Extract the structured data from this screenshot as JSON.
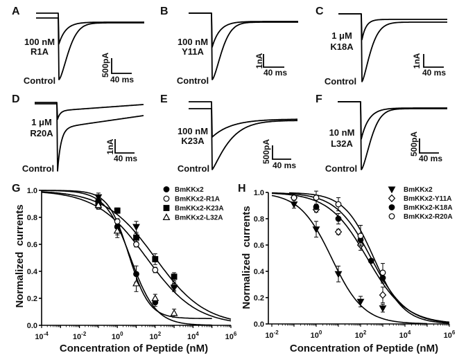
{
  "figure": {
    "background": "#ffffff",
    "ink": "#000000"
  },
  "trace_panels": [
    {
      "letter": "A",
      "concentration": "100 nM",
      "peptide": "R1A",
      "control_label": "Control",
      "scale_current": "500pA",
      "scale_time": "40 ms",
      "peak_fraction_vs_control": 0.5
    },
    {
      "letter": "B",
      "concentration": "100 nM",
      "peptide": "Y11A",
      "control_label": "Control",
      "scale_current": "1nA",
      "scale_time": "40 ms",
      "peak_fraction_vs_control": 0.51
    },
    {
      "letter": "C",
      "concentration": "1 μM",
      "peptide": "K18A",
      "control_label": "Control",
      "scale_current": "1nA",
      "scale_time": "40 ms",
      "peak_fraction_vs_control": 0.38
    },
    {
      "letter": "D",
      "concentration": "1 μM",
      "peptide": "R20A",
      "control_label": "Control",
      "scale_current": "1nA",
      "scale_time": "40 ms",
      "peak_fraction_vs_control": 0.25
    },
    {
      "letter": "E",
      "concentration": "100 nM",
      "peptide": "K23A",
      "control_label": "Control",
      "scale_current": "500pA",
      "scale_time": "40 ms",
      "peak_fraction_vs_control": 0.58
    },
    {
      "letter": "F",
      "concentration": "10 nM",
      "peptide": "L32A",
      "control_label": "Control",
      "scale_current": "500pA",
      "scale_time": "40 ms",
      "peak_fraction_vs_control": 0.55
    }
  ],
  "chart_data": [
    {
      "panel_letter": "G",
      "type": "scatter",
      "title": "",
      "xlabel": "Concentration of Peptide (nM)",
      "ylabel": "Normalized  currents",
      "xscale": "log",
      "xlim": [
        0.0001,
        1000000
      ],
      "ylim": [
        0,
        1
      ],
      "grid": false,
      "legend_position": "top-right",
      "xtick_labels": [
        {
          "value": 0.0001,
          "base": "10",
          "exp": "-4"
        },
        {
          "value": 0.01,
          "base": "10",
          "exp": "-2"
        },
        {
          "value": 1,
          "base": "10",
          "exp": "0"
        },
        {
          "value": 100,
          "base": "10",
          "exp": "2"
        },
        {
          "value": 10000,
          "base": "10",
          "exp": "4"
        },
        {
          "value": 1000000,
          "base": "10",
          "exp": "6"
        }
      ],
      "ytick_labels": [
        "0.0",
        "0.2",
        "0.4",
        "0.6",
        "0.8",
        "1.0"
      ],
      "series": [
        {
          "name": "BmKKx2",
          "marker": "circle-filled",
          "in_legend": true,
          "x": [
            0.1,
            1,
            10,
            100
          ],
          "y": [
            0.92,
            0.73,
            0.38,
            0.17
          ],
          "err": [
            0.03,
            0.06,
            0.06,
            0.03
          ],
          "fit": {
            "model": "hill",
            "top": 1,
            "bottom": 0,
            "ic50_nM": 5,
            "hill_n": 0.65,
            "x_range": [
              0.0001,
              100000
            ]
          }
        },
        {
          "name": "BmKKx2-R1A",
          "marker": "circle-open",
          "in_legend": true,
          "x": [
            0.1,
            1,
            10,
            100,
            1000
          ],
          "y": [
            0.88,
            0.77,
            0.6,
            0.41,
            0.29
          ],
          "err": [
            0.02,
            0.02,
            0.02,
            0.02,
            0.03
          ],
          "fit": {
            "model": "hill",
            "top": 1,
            "bottom": 0,
            "ic50_nM": 35,
            "hill_n": 0.33,
            "x_range": [
              0.0001,
              1000000
            ]
          }
        },
        {
          "name": "BmKKx2-K23A",
          "marker": "square-filled",
          "in_legend": true,
          "x": [
            0.1,
            1,
            10,
            100,
            1000
          ],
          "y": [
            0.91,
            0.85,
            0.65,
            0.49,
            0.36
          ],
          "err": [
            0.02,
            0.02,
            0.03,
            0.04,
            0.03
          ],
          "fit": {
            "model": "hill",
            "top": 1,
            "bottom": 0,
            "ic50_nM": 100,
            "hill_n": 0.33,
            "x_range": [
              0.0001,
              1000000
            ]
          }
        },
        {
          "name": "BmKKx2-L32A",
          "marker": "triangle-up-open",
          "in_legend": true,
          "x": [
            0.1,
            1,
            10,
            100,
            1000
          ],
          "y": [
            0.89,
            0.7,
            0.31,
            0.2,
            0.09
          ],
          "err": [
            0.02,
            0.05,
            0.06,
            0.03,
            0.03
          ],
          "fit": {
            "model": "hill",
            "top": 1,
            "bottom": 0.05,
            "ic50_nM": 4,
            "hill_n": 0.8,
            "x_range": [
              0.0001,
              100000
            ]
          }
        },
        {
          "name": null,
          "marker": "triangle-down-filled",
          "in_legend": false,
          "x": [
            0.1,
            10,
            1000
          ],
          "y": [
            0.95,
            0.73,
            0.28
          ],
          "err": [
            0.03,
            0.04,
            0.03
          ],
          "fit": null
        }
      ]
    },
    {
      "panel_letter": "H",
      "type": "scatter",
      "title": "",
      "xlabel": "Concentration of Peptide (nM)",
      "ylabel": "Normalized  currents",
      "xscale": "log",
      "xlim": [
        0.01,
        1000000
      ],
      "ylim": [
        0,
        1
      ],
      "grid": false,
      "legend_position": "top-right",
      "xtick_labels": [
        {
          "value": 0.01,
          "base": "10",
          "exp": "-2"
        },
        {
          "value": 1,
          "base": "10",
          "exp": "0"
        },
        {
          "value": 100,
          "base": "10",
          "exp": "2"
        },
        {
          "value": 10000,
          "base": "10",
          "exp": "4"
        },
        {
          "value": 1000000,
          "base": "10",
          "exp": "6"
        }
      ],
      "ytick_labels": [
        "0.0",
        "0.2",
        "0.4",
        "0.6",
        "0.8",
        "1.0"
      ],
      "series": [
        {
          "name": "BmKKx2",
          "marker": "triangle-down-filled",
          "in_legend": true,
          "x": [
            0.1,
            1,
            10,
            100,
            1000
          ],
          "y": [
            0.91,
            0.72,
            0.38,
            0.17,
            0.12
          ],
          "err": [
            0.03,
            0.06,
            0.06,
            0.04,
            0.03
          ],
          "fit": {
            "model": "hill",
            "top": 1,
            "bottom": 0,
            "ic50_nM": 5,
            "hill_n": 0.6,
            "x_range": [
              0.01,
              100000
            ]
          }
        },
        {
          "name": "BmKKx2-Y11A",
          "marker": "diamond-open",
          "in_legend": true,
          "x": [
            0.1,
            1,
            10,
            100,
            1000
          ],
          "y": [
            0.96,
            0.87,
            0.7,
            0.6,
            0.22
          ],
          "err": [
            0.01,
            0.02,
            0.02,
            0.04,
            0.06
          ],
          "fit": {
            "model": "hill",
            "top": 1,
            "bottom": 0,
            "ic50_nM": 200,
            "hill_n": 0.5,
            "x_range": [
              0.01,
              1000000
            ]
          }
        },
        {
          "name": "BmKKx2-K18A",
          "marker": "circle-filled",
          "in_legend": true,
          "x": [
            1,
            10,
            100,
            300,
            1000
          ],
          "y": [
            0.89,
            0.8,
            0.64,
            0.48,
            0.35
          ],
          "err": [
            0.02,
            0.04,
            0.04,
            0.01,
            0.04
          ],
          "fit": {
            "model": "hill",
            "top": 1,
            "bottom": 0,
            "ic50_nM": 300,
            "hill_n": 0.55,
            "x_range": [
              0.01,
              1000000
            ]
          }
        },
        {
          "name": "BmKKx2-R20A",
          "marker": "circle-open",
          "in_legend": true,
          "x": [
            0.1,
            1,
            10,
            100,
            1000
          ],
          "y": [
            0.96,
            0.96,
            0.91,
            0.67,
            0.39
          ],
          "err": [
            0.01,
            0.05,
            0.05,
            0.08,
            0.07
          ],
          "fit": {
            "model": "hill",
            "top": 1,
            "bottom": 0,
            "ic50_nM": 400,
            "hill_n": 0.65,
            "x_range": [
              0.06,
              1000000
            ]
          }
        }
      ]
    }
  ]
}
